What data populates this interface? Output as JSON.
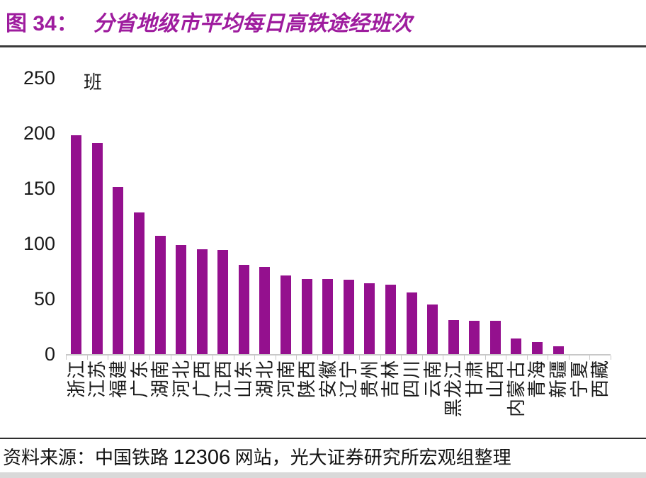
{
  "header": {
    "figure_label": "图 34：",
    "title": "分省地级市平均每日高铁途经班次"
  },
  "chart_data": {
    "type": "bar",
    "title": "分省地级市平均每日高铁途经班次",
    "unit_label": "班",
    "ylabel": "班",
    "ylim": [
      0,
      250
    ],
    "yticks": [
      0,
      50,
      100,
      150,
      200,
      250
    ],
    "grid": false,
    "legend": false,
    "bar_color": "#94108E",
    "categories": [
      "浙江",
      "江苏",
      "福建",
      "广东",
      "湖南",
      "河北",
      "广西",
      "江西",
      "山东",
      "湖北",
      "河南",
      "陕西",
      "安徽",
      "辽宁",
      "贵州",
      "吉林",
      "四川",
      "云南",
      "黑龙江",
      "甘肃",
      "山西",
      "内蒙古",
      "青海",
      "新疆",
      "宁夏",
      "西藏"
    ],
    "values": [
      198,
      191,
      151,
      128,
      107,
      99,
      95,
      94,
      81,
      79,
      71,
      68,
      68,
      67,
      64,
      63,
      56,
      45,
      31,
      30,
      30,
      14,
      11,
      7,
      0,
      0
    ]
  },
  "footer": {
    "source_prefix": "资料来源：中国铁路 ",
    "source_number": "12306",
    "source_suffix": " 网站，光大证券研究所宏观组整理"
  },
  "colors": {
    "title": "#9E1C9E",
    "bar": "#94108E",
    "axis": "#C8C8C8",
    "divider": "#3A3A3A",
    "text": "#1A1A1A"
  }
}
